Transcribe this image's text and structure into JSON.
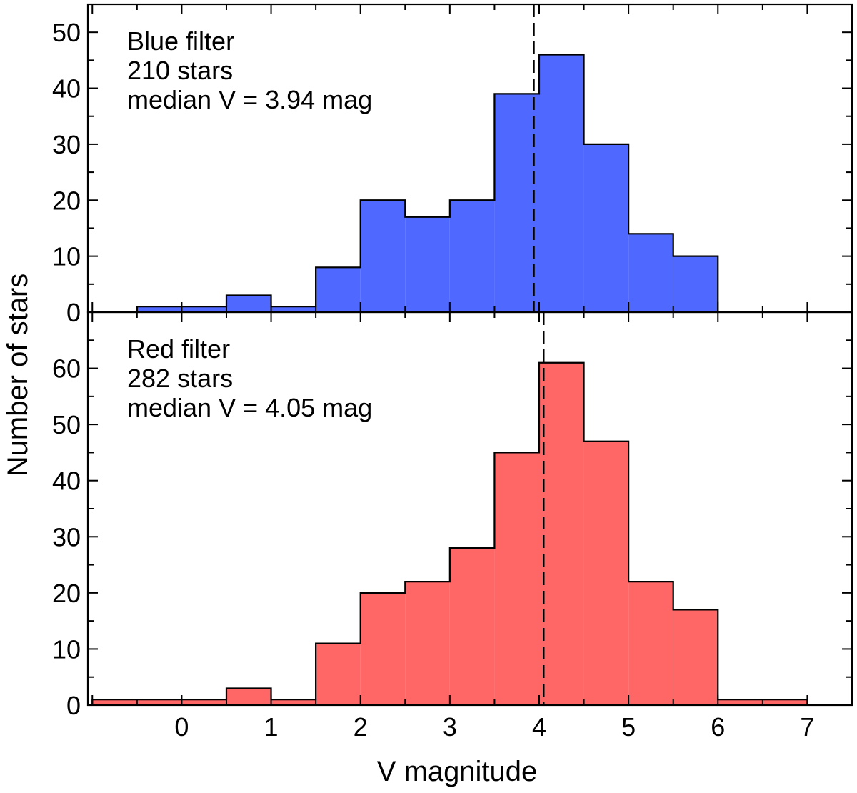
{
  "ylabel": "Number of stars",
  "xlabel": "V magnitude",
  "chart_data": [
    {
      "type": "bar",
      "panel": "top",
      "color": "#4f68ff",
      "title": "",
      "annotation": [
        "Blue filter",
        "210 stars",
        "median V = 3.94 mag"
      ],
      "bin_edges": [
        -0.5,
        0.0,
        0.5,
        1.0,
        1.5,
        2.0,
        2.5,
        3.0,
        3.5,
        4.0,
        4.5,
        5.0,
        5.5,
        6.0
      ],
      "values": [
        1,
        1,
        3,
        1,
        8,
        20,
        17,
        20,
        39,
        46,
        30,
        14,
        10
      ],
      "median": 3.94,
      "xlim": [
        -1.05,
        7.5
      ],
      "ylim": [
        0,
        55
      ],
      "yticks": [
        0,
        10,
        20,
        30,
        40,
        50
      ],
      "xlabel": "",
      "ylabel": "Number of stars"
    },
    {
      "type": "bar",
      "panel": "bottom",
      "color": "#ff6666",
      "title": "",
      "annotation": [
        "Red filter",
        "282 stars",
        "median V = 4.05 mag"
      ],
      "bin_edges": [
        -1.0,
        -0.5,
        0.0,
        0.5,
        1.0,
        1.5,
        2.0,
        2.5,
        3.0,
        3.5,
        4.0,
        4.5,
        5.0,
        5.5,
        6.0,
        6.5,
        7.0
      ],
      "values": [
        1,
        1,
        1,
        3,
        1,
        11,
        20,
        22,
        28,
        45,
        61,
        47,
        22,
        17,
        1,
        1
      ],
      "median": 4.05,
      "xlim": [
        -1.05,
        7.5
      ],
      "ylim": [
        0,
        70
      ],
      "yticks": [
        0,
        10,
        20,
        30,
        40,
        50,
        60
      ],
      "xticks": [
        0,
        1,
        2,
        3,
        4,
        5,
        6,
        7
      ],
      "xlabel": "V magnitude",
      "ylabel": "Number of stars"
    }
  ]
}
